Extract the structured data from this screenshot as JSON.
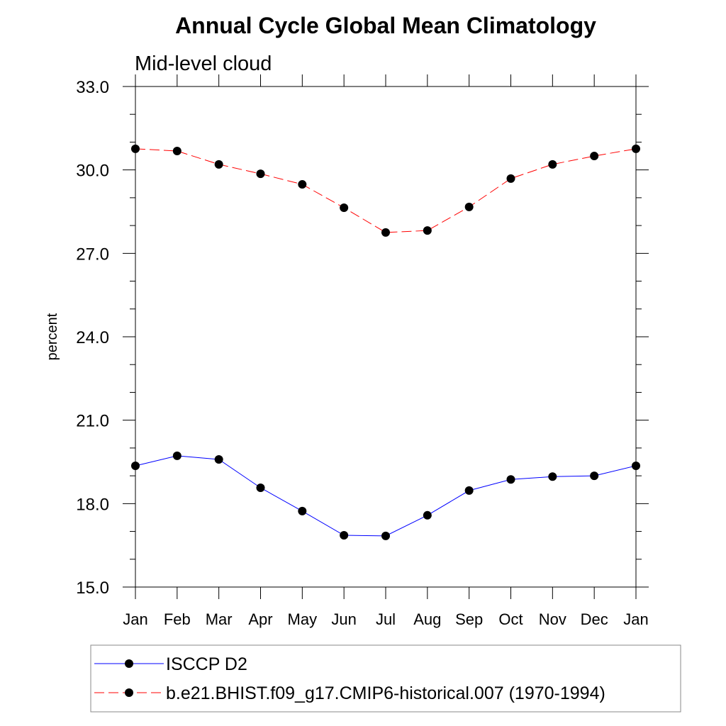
{
  "chart_data": {
    "type": "line",
    "title": "Annual Cycle Global Mean Climatology",
    "subtitle": "Mid-level cloud",
    "xlabel": "",
    "ylabel": "percent",
    "categories": [
      "Jan",
      "Feb",
      "Mar",
      "Apr",
      "May",
      "Jun",
      "Jul",
      "Aug",
      "Sep",
      "Oct",
      "Nov",
      "Dec",
      "Jan"
    ],
    "ylim": [
      15.0,
      33.0
    ],
    "yticks": [
      "15.0",
      "18.0",
      "21.0",
      "24.0",
      "27.0",
      "30.0",
      "33.0"
    ],
    "grid": false,
    "legend_placement": "bottom",
    "series": [
      {
        "name": "ISCCP D2",
        "color": "#0000ff",
        "dash": "solid",
        "values": [
          19.36,
          19.72,
          19.59,
          18.57,
          17.73,
          16.86,
          16.84,
          17.58,
          18.47,
          18.87,
          18.97,
          19.0,
          19.36
        ]
      },
      {
        "name": "b.e21.BHIST.f09_g17.CMIP6-historical.007 (1970-1994)",
        "color": "#ff0000",
        "dash": "dashed",
        "values": [
          30.76,
          30.68,
          30.2,
          29.86,
          29.48,
          28.64,
          27.75,
          27.82,
          28.67,
          29.69,
          30.2,
          30.5,
          30.76
        ]
      }
    ]
  }
}
